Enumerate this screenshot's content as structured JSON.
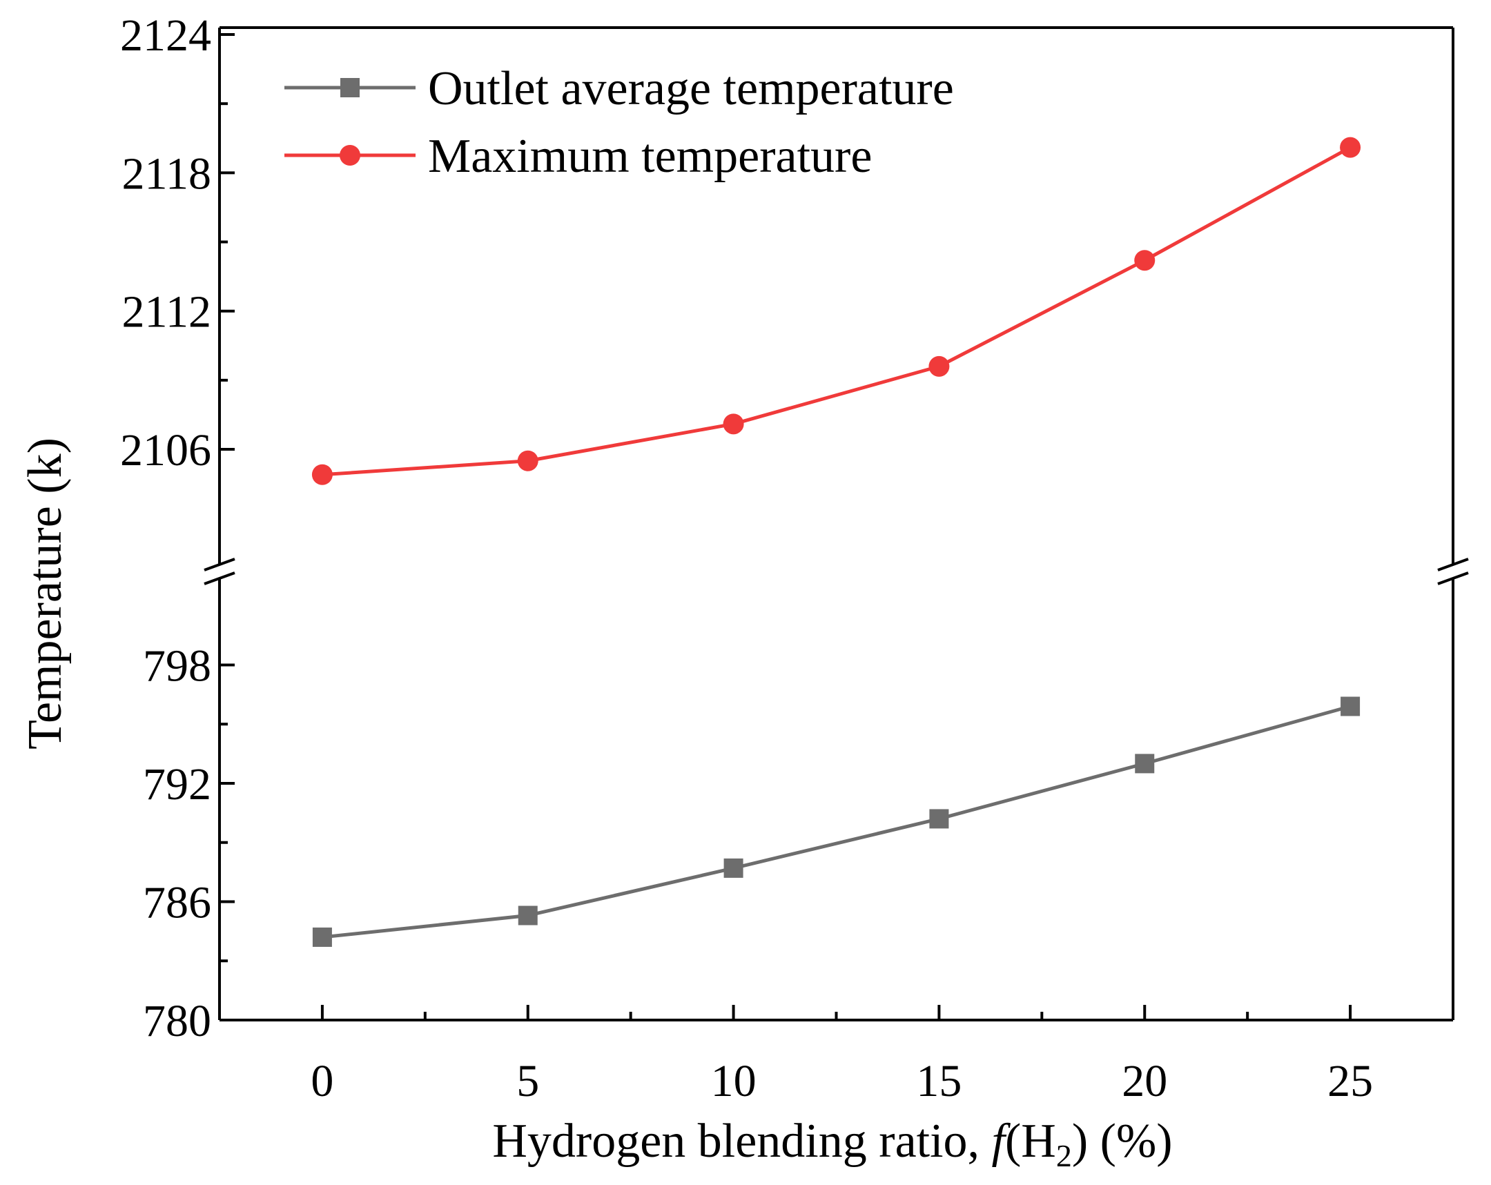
{
  "chart_data": {
    "type": "line",
    "title": "",
    "xlabel": "Hydrogen blending ratio, f(H2) (%)",
    "xlabel_parts": {
      "prefix": "Hydrogen blending ratio, ",
      "italic": "f",
      "open": "(H",
      "sub": "2",
      "close": ") (%)"
    },
    "ylabel": "Temperature (k)",
    "broken_axis": true,
    "x": [
      0,
      5,
      10,
      15,
      20,
      25
    ],
    "xlim": [
      -2.5,
      27.5
    ],
    "x_ticks": [
      0,
      5,
      10,
      15,
      20,
      25
    ],
    "x_tick_labels": [
      "0",
      "5",
      "10",
      "15",
      "20",
      "25"
    ],
    "y_lower": {
      "ylim": [
        780,
        800.5
      ],
      "ticks": [
        780,
        786,
        792,
        798
      ],
      "tick_labels": [
        "780",
        "786",
        "792",
        "798"
      ]
    },
    "y_upper": {
      "ylim": [
        2101.3,
        2124.3
      ],
      "ticks": [
        2106,
        2112,
        2118,
        2124
      ],
      "tick_labels": [
        "2106",
        "2112",
        "2118",
        "2124"
      ]
    },
    "series": [
      {
        "name": "Outlet average temperature",
        "axis": "lower",
        "marker": "square",
        "color": "#6d6d6d",
        "values": [
          784.2,
          785.3,
          787.7,
          790.2,
          793.0,
          795.9
        ]
      },
      {
        "name": "Maximum temperature",
        "axis": "upper",
        "marker": "circle",
        "color": "#f03a3a",
        "values": [
          2104.9,
          2105.5,
          2107.1,
          2109.6,
          2114.2,
          2119.1
        ]
      }
    ],
    "legend_position": "top-left",
    "grid": false
  }
}
